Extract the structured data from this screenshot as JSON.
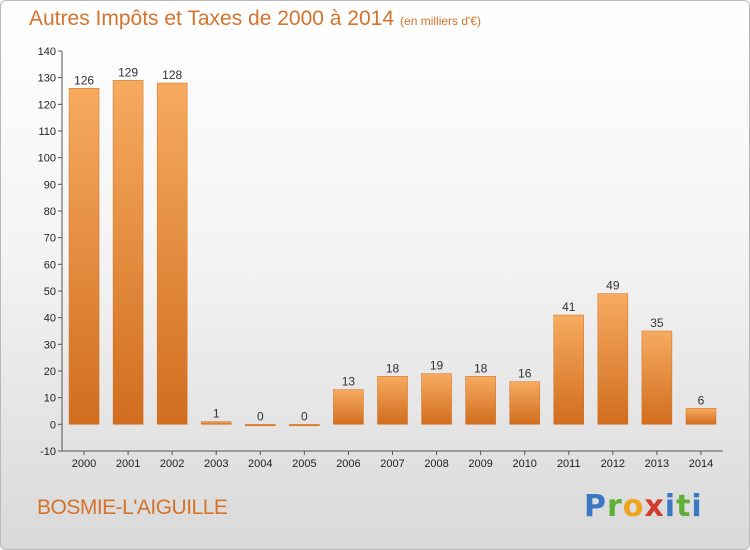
{
  "header": {
    "title": "Autres Impôts et Taxes de 2000 à 2014",
    "unit": "(en milliers d'€)"
  },
  "footer": {
    "commune": "BOSMIE-L'AIGUILLE",
    "logo": "Proxiti"
  },
  "colors": {
    "bar": "#f0913a",
    "bar_light": "#f6ab60",
    "bar_dark": "#d16d1e",
    "title": "#d5732b"
  },
  "chart_data": {
    "type": "bar",
    "title": "Autres Impôts et Taxes de 2000 à 2014",
    "subtitle": "(en milliers d'€)",
    "categories": [
      "2000",
      "2001",
      "2002",
      "2003",
      "2004",
      "2005",
      "2006",
      "2007",
      "2008",
      "2009",
      "2010",
      "2011",
      "2012",
      "2013",
      "2014"
    ],
    "values": [
      126,
      129,
      128,
      1,
      0,
      0,
      13,
      18,
      19,
      18,
      16,
      41,
      49,
      35,
      6
    ],
    "ylim": [
      -10,
      140
    ],
    "yticks": [
      -10,
      0,
      10,
      20,
      30,
      40,
      50,
      60,
      70,
      80,
      90,
      100,
      110,
      120,
      130,
      140
    ],
    "grid": false,
    "legend": "none"
  }
}
